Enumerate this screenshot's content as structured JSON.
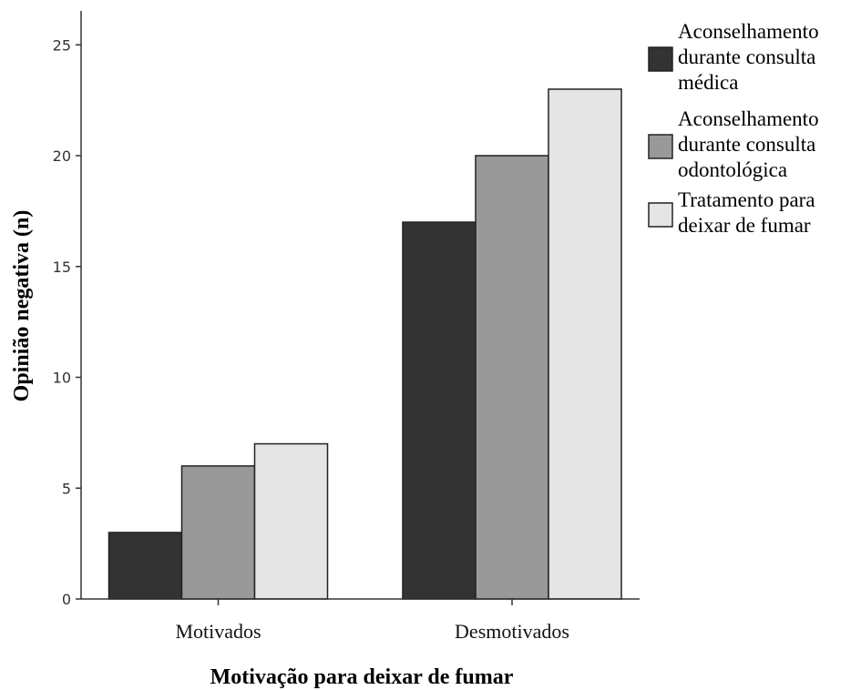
{
  "chart_data": {
    "type": "bar",
    "title": "",
    "xlabel": "Motivação para deixar de fumar",
    "ylabel": "Opinião negativa (n)",
    "categories": [
      "Motivados",
      "Desmotivados"
    ],
    "ylim": [
      0,
      26
    ],
    "yticks": [
      "0",
      "5",
      "10",
      "15",
      "20",
      "25"
    ],
    "grid": false,
    "legend_position": "top-right",
    "series": [
      {
        "name": "Aconselhamento durante consulta médica",
        "legend_lines": [
          "Aconselhamento",
          "durante consulta",
          "médica"
        ],
        "color": "#333333",
        "values": [
          3,
          17
        ]
      },
      {
        "name": "Aconselhamento durante consulta odontológica",
        "legend_lines": [
          "Aconselhamento",
          "durante consulta",
          "odontológica"
        ],
        "color": "#999999",
        "values": [
          6,
          20
        ]
      },
      {
        "name": "Tratamento para deixar de fumar",
        "legend_lines": [
          "Tratamento para",
          "deixar de fumar"
        ],
        "color": "#e5e5e5",
        "values": [
          7,
          23
        ]
      }
    ]
  }
}
